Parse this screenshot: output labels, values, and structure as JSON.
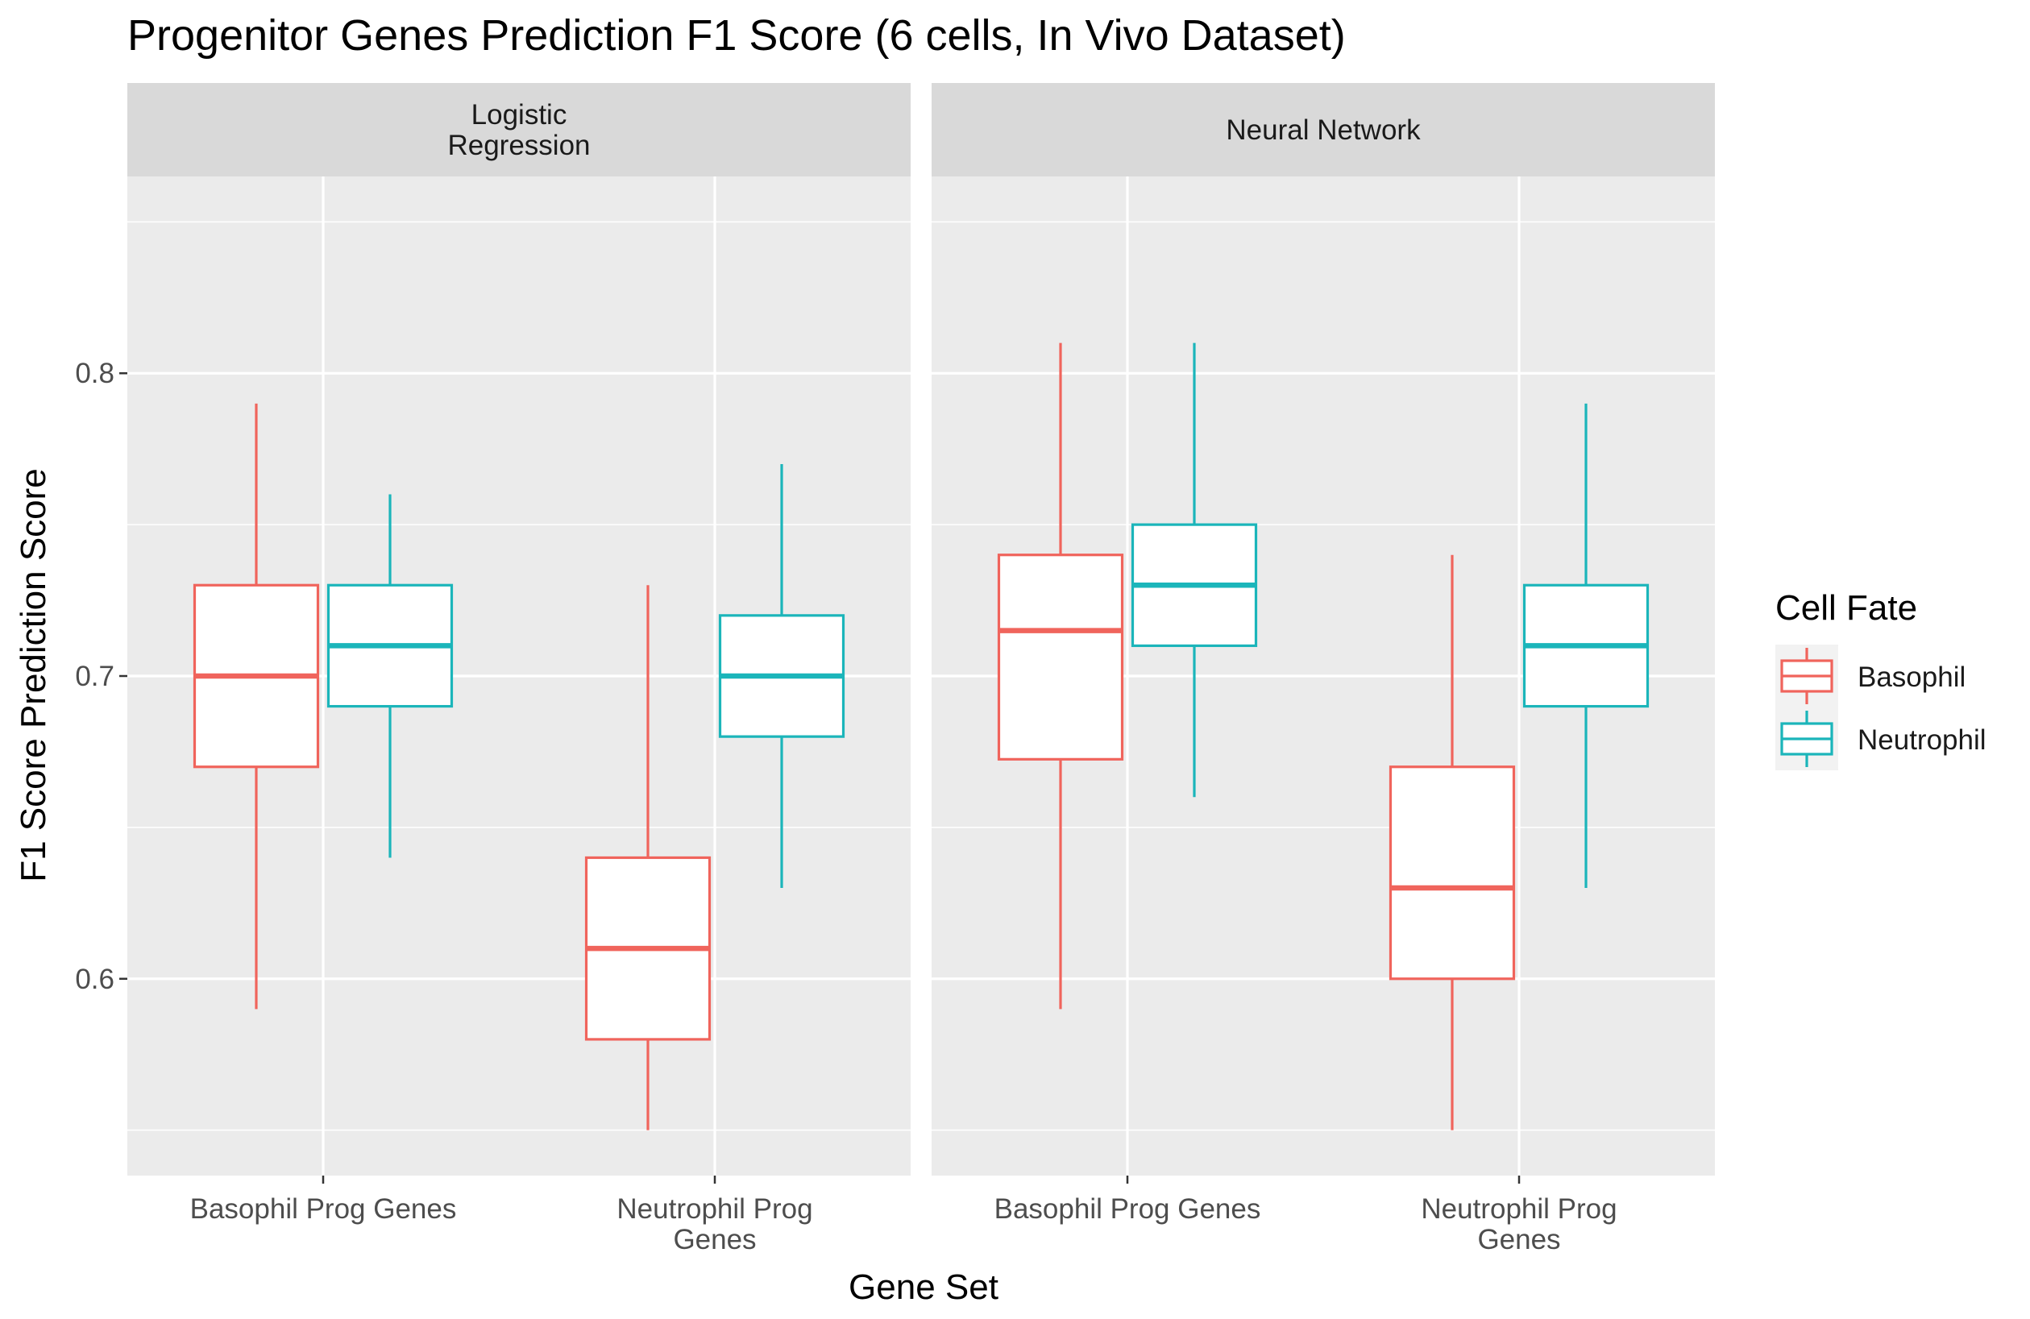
{
  "chart_data": {
    "type": "boxplot",
    "title": "Progenitor Genes Prediction F1 Score (6 cells, In Vivo Dataset)",
    "xlabel": "Gene Set",
    "ylabel": "F1 Score Prediction Score",
    "ylim": [
      0.535,
      0.865
    ],
    "y_ticks": [
      0.6,
      0.7,
      0.8
    ],
    "y_tick_labels": [
      "0.6",
      "0.7",
      "0.8"
    ],
    "categories": [
      "Basophil Prog Genes",
      "Neutrophil Prog Genes"
    ],
    "legend": {
      "title": "Cell Fate",
      "position": "right",
      "entries": [
        {
          "name": "Basophil",
          "color": "#f0645c"
        },
        {
          "name": "Neutrophil",
          "color": "#1bb5ba"
        }
      ]
    },
    "grid": true,
    "facets": [
      {
        "name": "Logistic Regression",
        "label_lines": [
          "Logistic",
          "Regression"
        ],
        "groups": [
          {
            "category": "Basophil Prog Genes",
            "boxes": [
              {
                "series": "Basophil",
                "min": 0.59,
                "q1": 0.67,
                "median": 0.7,
                "q3": 0.73,
                "max": 0.79
              },
              {
                "series": "Neutrophil",
                "min": 0.64,
                "q1": 0.69,
                "median": 0.71,
                "q3": 0.73,
                "max": 0.76
              }
            ]
          },
          {
            "category": "Neutrophil Prog Genes",
            "boxes": [
              {
                "series": "Basophil",
                "min": 0.55,
                "q1": 0.58,
                "median": 0.61,
                "q3": 0.64,
                "max": 0.73
              },
              {
                "series": "Neutrophil",
                "min": 0.63,
                "q1": 0.68,
                "median": 0.7,
                "q3": 0.72,
                "max": 0.77
              }
            ]
          }
        ]
      },
      {
        "name": "Neural Network",
        "label_lines": [
          "Neural Network"
        ],
        "groups": [
          {
            "category": "Basophil Prog Genes",
            "boxes": [
              {
                "series": "Basophil",
                "min": 0.59,
                "q1": 0.6725,
                "median": 0.715,
                "q3": 0.74,
                "max": 0.81
              },
              {
                "series": "Neutrophil",
                "min": 0.66,
                "q1": 0.71,
                "median": 0.73,
                "q3": 0.75,
                "max": 0.81
              }
            ]
          },
          {
            "category": "Neutrophil Prog Genes",
            "boxes": [
              {
                "series": "Basophil",
                "min": 0.55,
                "q1": 0.6,
                "median": 0.63,
                "q3": 0.67,
                "max": 0.74
              },
              {
                "series": "Neutrophil",
                "min": 0.63,
                "q1": 0.69,
                "median": 0.71,
                "q3": 0.73,
                "max": 0.79
              }
            ]
          }
        ]
      }
    ],
    "x_tick_label_lines": [
      [
        "Basophil Prog Genes"
      ],
      [
        "Neutrophil Prog",
        "Genes"
      ]
    ]
  }
}
